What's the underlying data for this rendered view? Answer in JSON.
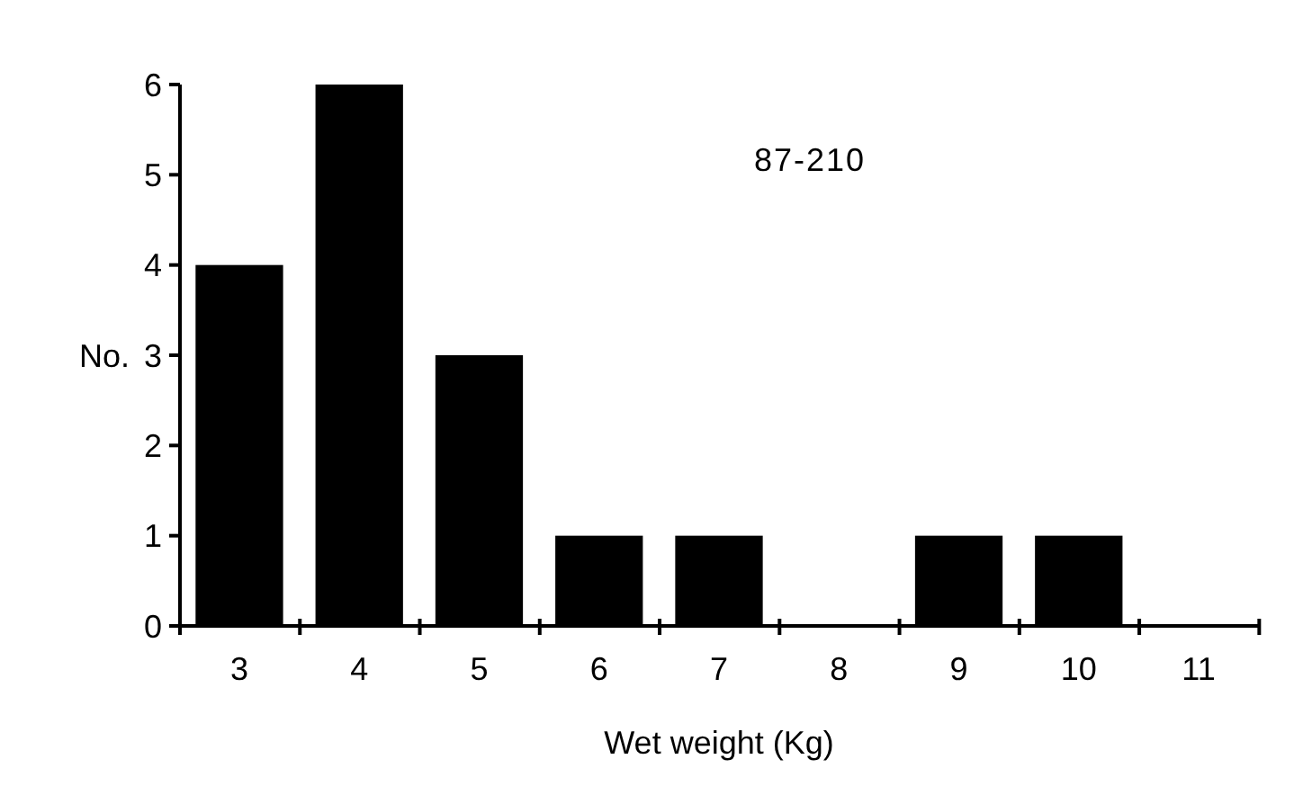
{
  "chart_data": {
    "type": "bar",
    "xlabel": "Wet weight (Kg)",
    "ylabel": "No.",
    "categories": [
      "3",
      "4",
      "5",
      "6",
      "7",
      "8",
      "9",
      "10",
      "11"
    ],
    "values": [
      4,
      6,
      3,
      1,
      1,
      0,
      1,
      1,
      0
    ],
    "color": "#000000",
    "ylim": [
      0,
      6
    ],
    "yticks": [
      0,
      1,
      2,
      3,
      4,
      5,
      6
    ],
    "grid": false,
    "annotations": [
      "87-210"
    ]
  }
}
